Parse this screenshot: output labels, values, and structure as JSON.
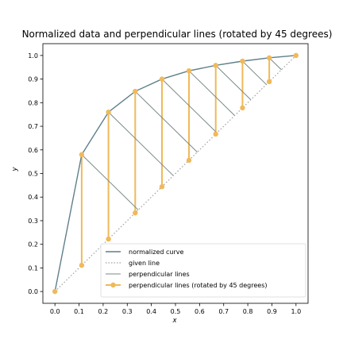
{
  "chart_data": {
    "type": "line",
    "title": "Normalized data and perpendicular lines (rotated by 45 degrees)",
    "xlabel": "x",
    "ylabel": "y",
    "xlim": [
      -0.05,
      1.05
    ],
    "ylim": [
      -0.05,
      1.05
    ],
    "xticks": [
      0.0,
      0.1,
      0.2,
      0.3,
      0.4,
      0.5,
      0.6,
      0.7,
      0.8,
      0.9,
      1.0
    ],
    "yticks": [
      0.0,
      0.1,
      0.2,
      0.3,
      0.4,
      0.5,
      0.6,
      0.7,
      0.8,
      0.9,
      1.0
    ],
    "xtick_labels": [
      "0.0",
      "0.1",
      "0.2",
      "0.3",
      "0.4",
      "0.5",
      "0.6",
      "0.7",
      "0.8",
      "0.9",
      "1.0"
    ],
    "ytick_labels": [
      "0.0",
      "0.1",
      "0.2",
      "0.3",
      "0.4",
      "0.5",
      "0.6",
      "0.7",
      "0.8",
      "0.9",
      "1.0"
    ],
    "grid": false,
    "legend_position": "lower-right",
    "series": [
      {
        "name": "normalized curve",
        "style": "solid",
        "color": "#5f7f8a",
        "x": [
          0.0,
          0.111,
          0.222,
          0.333,
          0.444,
          0.556,
          0.667,
          0.778,
          0.889,
          1.0
        ],
        "y": [
          0.0,
          0.58,
          0.76,
          0.848,
          0.9,
          0.935,
          0.958,
          0.976,
          0.99,
          1.0
        ]
      },
      {
        "name": "given line",
        "style": "dotted",
        "color": "#a0a0a0",
        "x": [
          0.0,
          1.0
        ],
        "y": [
          0.0,
          1.0
        ]
      },
      {
        "name": "perpendicular lines",
        "style": "solid",
        "color": "#7a8a8a",
        "segments": [
          [
            [
              0.111,
              0.58
            ],
            [
              0.3455,
              0.3455
            ]
          ],
          [
            [
              0.222,
              0.76
            ],
            [
              0.491,
              0.491
            ]
          ],
          [
            [
              0.333,
              0.848
            ],
            [
              0.5905,
              0.5905
            ]
          ],
          [
            [
              0.444,
              0.9
            ],
            [
              0.672,
              0.672
            ]
          ],
          [
            [
              0.556,
              0.935
            ],
            [
              0.7455,
              0.7455
            ]
          ],
          [
            [
              0.667,
              0.958
            ],
            [
              0.8125,
              0.8125
            ]
          ],
          [
            [
              0.778,
              0.976
            ],
            [
              0.877,
              0.877
            ]
          ],
          [
            [
              0.889,
              0.99
            ],
            [
              0.9395,
              0.9395
            ]
          ]
        ]
      },
      {
        "name": "perpendicular lines (rotated by 45 degrees)",
        "style": "solid-marker",
        "color": "#f0b95a",
        "segments": [
          [
            [
              0.111,
              0.58
            ],
            [
              0.111,
              0.111
            ]
          ],
          [
            [
              0.222,
              0.76
            ],
            [
              0.222,
              0.222
            ]
          ],
          [
            [
              0.333,
              0.848
            ],
            [
              0.333,
              0.333
            ]
          ],
          [
            [
              0.444,
              0.9
            ],
            [
              0.444,
              0.444
            ]
          ],
          [
            [
              0.556,
              0.935
            ],
            [
              0.556,
              0.556
            ]
          ],
          [
            [
              0.667,
              0.958
            ],
            [
              0.667,
              0.667
            ]
          ],
          [
            [
              0.778,
              0.976
            ],
            [
              0.778,
              0.778
            ]
          ],
          [
            [
              0.889,
              0.99
            ],
            [
              0.889,
              0.889
            ]
          ]
        ]
      }
    ]
  },
  "colors": {
    "curve": "#5f7f8a",
    "given_line": "#a0a0a0",
    "perpendicular": "#7a8a8a",
    "rotated": "#f0b95a",
    "axes": "#000000"
  }
}
